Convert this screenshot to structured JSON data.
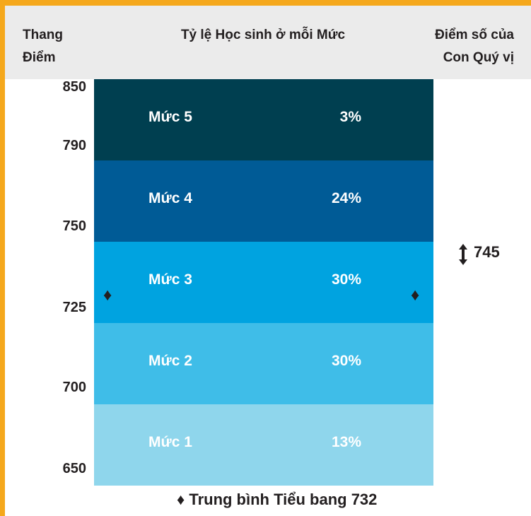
{
  "header": {
    "scale": [
      "Thang",
      "Điểm"
    ],
    "title": "Tỷ lệ Học sinh ở mỗi Mức",
    "score": [
      "Điểm số của",
      "Con Quý vị"
    ]
  },
  "scale_labels": [
    "850",
    "790",
    "750",
    "725",
    "700",
    "650"
  ],
  "levels": [
    {
      "name": "Mức 5",
      "percent": "3%"
    },
    {
      "name": "Mức 4",
      "percent": "24%"
    },
    {
      "name": "Mức 3",
      "percent": "30%"
    },
    {
      "name": "Mức 2",
      "percent": "30%"
    },
    {
      "name": "Mức 1",
      "percent": "13%"
    }
  ],
  "student_score": "745",
  "legend": "Trung bình Tiểu bang 732"
}
